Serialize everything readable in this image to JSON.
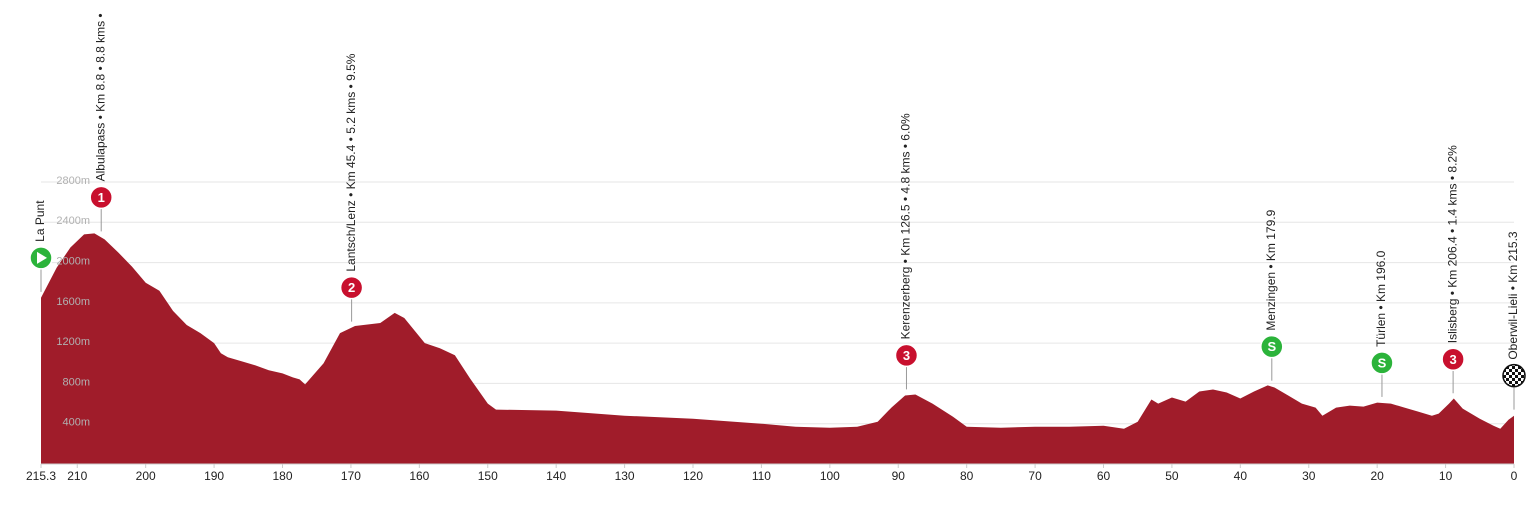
{
  "chart_data": {
    "type": "area",
    "color": "#a01c2a",
    "grid": true,
    "xlim": [
      215.3,
      0
    ],
    "xticks": [
      215.3,
      210,
      200,
      190,
      180,
      170,
      160,
      150,
      140,
      130,
      120,
      110,
      100,
      90,
      80,
      70,
      60,
      50,
      40,
      30,
      20,
      10,
      0
    ],
    "ylim": [
      0,
      2800
    ],
    "yticks": [
      {
        "value": 400,
        "label": "400m"
      },
      {
        "value": 800,
        "label": "800m"
      },
      {
        "value": 1200,
        "label": "1200m"
      },
      {
        "value": 1600,
        "label": "1600m"
      },
      {
        "value": 2000,
        "label": "2000m"
      },
      {
        "value": 2400,
        "label": "2400m"
      },
      {
        "value": 2800,
        "label": "2800m"
      }
    ],
    "x": [
      215.3,
      213,
      211,
      209,
      207.5,
      206,
      204,
      202,
      200,
      198,
      196,
      194,
      192,
      190,
      189,
      188,
      186,
      184,
      182,
      180,
      178.5,
      177.5,
      176.7,
      174,
      171.6,
      169.4,
      165.7,
      163.6,
      162.2,
      159.2,
      157,
      154.8,
      152.6,
      150,
      148.8,
      140,
      130,
      120,
      110,
      105,
      100,
      96,
      93,
      91,
      89,
      87.5,
      85,
      82,
      80,
      75,
      70,
      65,
      60,
      57,
      55,
      53,
      52,
      50,
      48,
      46,
      44,
      42,
      40,
      38,
      36,
      35,
      33,
      31,
      29,
      28,
      26,
      24,
      22,
      20,
      18,
      16,
      14,
      12,
      11,
      9.5,
      8.8,
      7.5,
      5,
      3,
      2,
      0.8,
      0
    ],
    "values": [
      1650,
      1950,
      2150,
      2280,
      2290,
      2230,
      2100,
      1960,
      1800,
      1720,
      1520,
      1380,
      1300,
      1200,
      1100,
      1060,
      1020,
      980,
      930,
      900,
      860,
      840,
      790,
      1000,
      1300,
      1370,
      1400,
      1500,
      1450,
      1200,
      1150,
      1080,
      850,
      600,
      540,
      530,
      480,
      450,
      400,
      370,
      360,
      370,
      420,
      560,
      680,
      690,
      600,
      470,
      370,
      360,
      370,
      370,
      380,
      350,
      420,
      640,
      600,
      660,
      620,
      720,
      740,
      710,
      650,
      720,
      780,
      760,
      680,
      600,
      560,
      480,
      560,
      580,
      570,
      610,
      600,
      560,
      520,
      480,
      500,
      600,
      650,
      550,
      450,
      380,
      350,
      440,
      480
    ],
    "markers": [
      {
        "km": 215.3,
        "icon": "start",
        "label": "La Punt"
      },
      {
        "km": 206.5,
        "icon": "climb",
        "badge": "1",
        "label": "Albulapass • Km 8.8 • 8.8 kms •"
      },
      {
        "km": 169.9,
        "icon": "climb",
        "badge": "2",
        "label": "Lantsch/Lenz • Km 45.4 • 5.2 kms • 9.5%"
      },
      {
        "km": 88.8,
        "icon": "climb",
        "badge": "3",
        "label": "Kerenzerberg • Km 126.5 • 4.8 kms • 6.0%"
      },
      {
        "km": 35.4,
        "icon": "sprint",
        "badge": "S",
        "label": "Menzingen • Km 179.9"
      },
      {
        "km": 19.3,
        "icon": "sprint",
        "badge": "S",
        "label": "Türlen • Km 196.0"
      },
      {
        "km": 8.9,
        "icon": "climb",
        "badge": "3",
        "label": "Islisberg • Km 206.4 • 1.4 kms • 8.2%"
      },
      {
        "km": 0,
        "icon": "finish",
        "label": "Oberwil-Lieli • Km 215.3"
      }
    ]
  }
}
